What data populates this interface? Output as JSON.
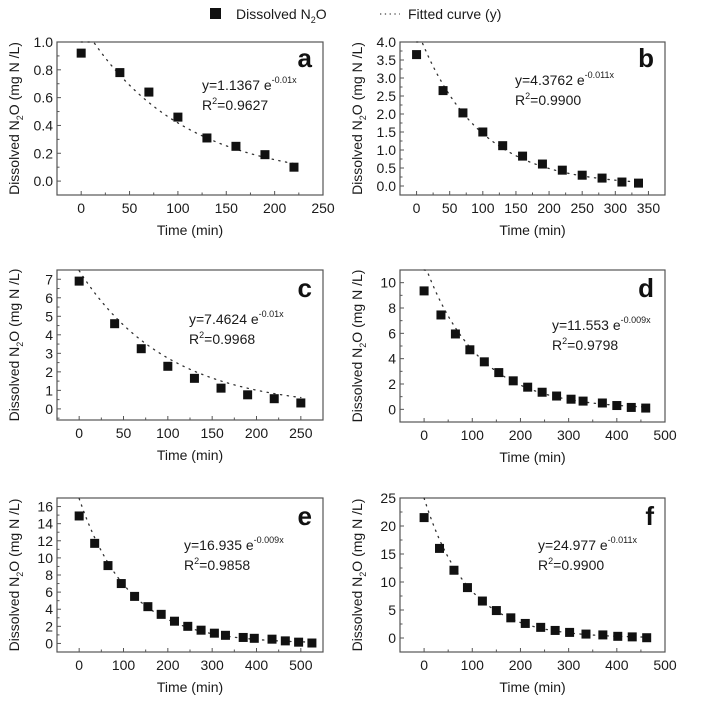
{
  "legend": {
    "marker_label": "Dissolved N",
    "marker_label_sub": "2",
    "marker_label_tail": "O",
    "line_label": "Fitted curve (y)"
  },
  "colors": {
    "marker": "#111111",
    "curve": "#333333",
    "axis": "#555555"
  },
  "chart_data": [
    {
      "type": "scatter",
      "panel": "a",
      "xlabel": "Time (min)",
      "ylabel": "Dissolved N2O (mg N /L)",
      "xlim": [
        -25,
        250
      ],
      "ylim": [
        -0.1,
        1.0
      ],
      "xticks": [
        0,
        50,
        100,
        150,
        200,
        250
      ],
      "yticks": [
        0.0,
        0.2,
        0.4,
        0.6,
        0.8,
        1.0
      ],
      "ytick_labels": [
        "0.0",
        "0.2",
        "0.4",
        "0.6",
        "0.8",
        "1.0"
      ],
      "x": [
        0,
        40,
        70,
        100,
        130,
        160,
        190,
        220
      ],
      "y": [
        0.92,
        0.78,
        0.64,
        0.46,
        0.31,
        0.25,
        0.19,
        0.1
      ],
      "fit": {
        "a": 1.1367,
        "k": -0.01
      },
      "equation": {
        "base": "y=1.1367 e",
        "exp": "-0.01x",
        "r2_value": "=0.9627"
      }
    },
    {
      "type": "scatter",
      "panel": "b",
      "xlabel": "Time (min)",
      "ylabel": "Dissolved N2O (mg N /L)",
      "xlim": [
        -25,
        375
      ],
      "ylim": [
        -0.25,
        4.0
      ],
      "xticks": [
        0,
        50,
        100,
        150,
        200,
        250,
        300,
        350
      ],
      "yticks": [
        0.0,
        0.5,
        1.0,
        1.5,
        2.0,
        2.5,
        3.0,
        3.5,
        4.0
      ],
      "ytick_labels": [
        "0.0",
        "0.5",
        "1.0",
        "1.5",
        "2.0",
        "2.5",
        "3.0",
        "3.5",
        "4.0"
      ],
      "x": [
        0,
        40,
        70,
        100,
        130,
        160,
        190,
        220,
        250,
        280,
        310,
        335
      ],
      "y": [
        3.65,
        2.65,
        2.03,
        1.5,
        1.12,
        0.83,
        0.61,
        0.44,
        0.3,
        0.22,
        0.11,
        0.08
      ],
      "fit": {
        "a": 4.3762,
        "k": -0.011
      },
      "equation": {
        "base": "y=4.3762 e",
        "exp": "-0.011x",
        "r2_value": "=0.9900"
      }
    },
    {
      "type": "scatter",
      "panel": "c",
      "xlabel": "Time (min)",
      "ylabel": "Dissolved N2O (mg N /L)",
      "xlim": [
        -25,
        275
      ],
      "ylim": [
        -0.6,
        7.5
      ],
      "xticks": [
        0,
        50,
        100,
        150,
        200,
        250
      ],
      "yticks": [
        0,
        1,
        2,
        3,
        4,
        5,
        6,
        7
      ],
      "ytick_labels": [
        "0",
        "1",
        "2",
        "3",
        "4",
        "5",
        "6",
        "7"
      ],
      "x": [
        0,
        40,
        70,
        100,
        130,
        160,
        190,
        220,
        250
      ],
      "y": [
        6.9,
        4.6,
        3.25,
        2.3,
        1.65,
        1.12,
        0.76,
        0.55,
        0.32
      ],
      "fit": {
        "a": 7.4624,
        "k": -0.01
      },
      "equation": {
        "base": "y=7.4624 e",
        "exp": "-0.01x",
        "r2_value": "=0.9968"
      }
    },
    {
      "type": "scatter",
      "panel": "d",
      "xlabel": "Time (min)",
      "ylabel": "Dissolved N2O (mg N /L)",
      "xlim": [
        -50,
        500
      ],
      "ylim": [
        -1,
        11
      ],
      "xticks": [
        0,
        100,
        200,
        300,
        400,
        500
      ],
      "yticks": [
        0,
        2,
        4,
        6,
        8,
        10
      ],
      "ytick_labels": [
        "0",
        "2",
        "4",
        "6",
        "8",
        "10"
      ],
      "x": [
        0,
        35,
        65,
        95,
        125,
        155,
        185,
        215,
        245,
        275,
        305,
        330,
        370,
        400,
        430,
        460
      ],
      "y": [
        9.35,
        7.45,
        5.95,
        4.7,
        3.75,
        2.9,
        2.25,
        1.75,
        1.35,
        1.05,
        0.8,
        0.65,
        0.5,
        0.3,
        0.15,
        0.1
      ],
      "fit": {
        "a": 11.553,
        "k": -0.009
      },
      "equation": {
        "base": "y=11.553 e",
        "exp": "-0.009x",
        "r2_value": "=0.9798"
      }
    },
    {
      "type": "scatter",
      "panel": "e",
      "xlabel": "Time (min)",
      "ylabel": "Dissolved N2O (mg N /L)",
      "xlim": [
        -50,
        550
      ],
      "ylim": [
        -1,
        17
      ],
      "xticks": [
        0,
        100,
        200,
        300,
        400,
        500
      ],
      "yticks": [
        0,
        2,
        4,
        6,
        8,
        10,
        12,
        14,
        16
      ],
      "ytick_labels": [
        "0",
        "2",
        "4",
        "6",
        "8",
        "10",
        "12",
        "14",
        "16"
      ],
      "x": [
        0,
        35,
        65,
        95,
        125,
        155,
        185,
        215,
        245,
        275,
        305,
        330,
        370,
        395,
        435,
        465,
        495,
        525
      ],
      "y": [
        14.9,
        11.7,
        9.1,
        7.0,
        5.5,
        4.3,
        3.4,
        2.6,
        2.0,
        1.55,
        1.2,
        0.95,
        0.7,
        0.6,
        0.5,
        0.3,
        0.15,
        0.05
      ],
      "fit": {
        "a": 16.935,
        "k": -0.009
      },
      "equation": {
        "base": "y=16.935 e",
        "exp": "-0.009x",
        "r2_value": "=0.9858"
      }
    },
    {
      "type": "scatter",
      "panel": "f",
      "xlabel": "Time (min)",
      "ylabel": "Dissolved N2O (mg N /L)",
      "xlim": [
        -50,
        500
      ],
      "ylim": [
        -2.5,
        25
      ],
      "xticks": [
        0,
        100,
        200,
        300,
        400,
        500
      ],
      "yticks": [
        0,
        5,
        10,
        15,
        20,
        25
      ],
      "ytick_labels": [
        "0",
        "5",
        "10",
        "15",
        "20",
        "25"
      ],
      "x": [
        0,
        32,
        62,
        90,
        121,
        150,
        180,
        210,
        242,
        272,
        302,
        336,
        371,
        402,
        432,
        462
      ],
      "y": [
        21.5,
        16.0,
        12.1,
        9.0,
        6.6,
        4.9,
        3.6,
        2.6,
        1.9,
        1.35,
        1.0,
        0.7,
        0.55,
        0.3,
        0.2,
        0.05
      ],
      "fit": {
        "a": 24.977,
        "k": -0.011
      },
      "equation": {
        "base": "y=24.977 e",
        "exp": "-0.011x",
        "r2_value": "=0.9900"
      }
    }
  ]
}
